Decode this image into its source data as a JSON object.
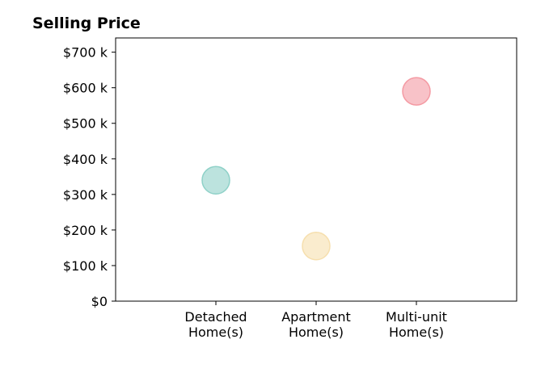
{
  "chart_data": {
    "type": "scatter",
    "title": "Selling Price",
    "xlabel": "",
    "ylabel": "",
    "categories": [
      "Detached\nHome(s)",
      "Apartment\nHome(s)",
      "Multi-unit\nHome(s)"
    ],
    "x": [
      1,
      2,
      3
    ],
    "xlim": [
      0,
      4
    ],
    "values": [
      340000,
      155000,
      590000
    ],
    "ylim": [
      0,
      740000
    ],
    "y_ticks": [
      0,
      100000,
      200000,
      300000,
      400000,
      500000,
      600000,
      700000
    ],
    "y_tick_labels": [
      "$0",
      "$100 k",
      "$200 k",
      "$300 k",
      "$400 k",
      "$500 k",
      "$600 k",
      "$700 k"
    ],
    "point_colors": [
      "#8fd1c8",
      "#f6dfae",
      "#f49aa3"
    ],
    "grid": false,
    "legend": "none"
  }
}
